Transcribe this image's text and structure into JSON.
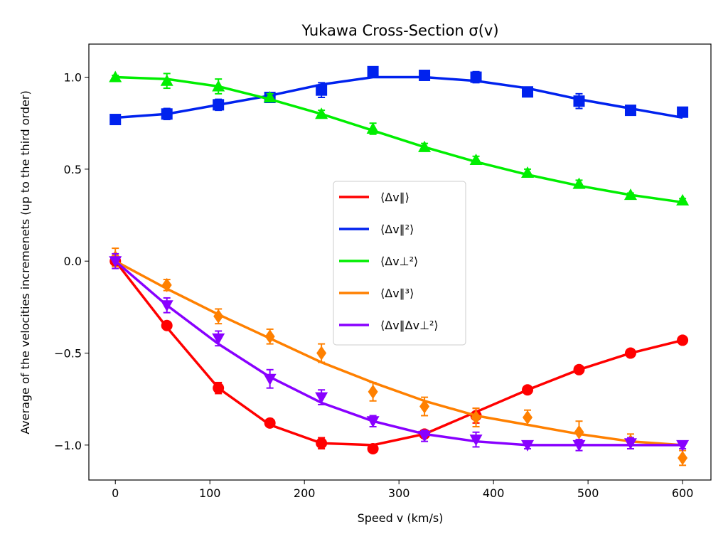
{
  "chart_data": {
    "type": "line",
    "title": "Yukawa Cross-Section σ(v)",
    "xlabel": "Speed v (km/s)",
    "ylabel": "Average of the velocities incremenets (up to the third order)",
    "xlim": [
      -28,
      630
    ],
    "ylim": [
      -1.19,
      1.18
    ],
    "xticks": [
      0,
      100,
      200,
      300,
      400,
      500,
      600
    ],
    "yticks": [
      -1.0,
      -0.5,
      0.0,
      0.5,
      1.0
    ],
    "ytick_labels": [
      "−1.0",
      "−0.5",
      "0.0",
      "0.5",
      "1.0"
    ],
    "grid": false,
    "legend_position": "center-right",
    "x": [
      0,
      54.5,
      109,
      163.5,
      218,
      272.5,
      327,
      381.5,
      436,
      490.5,
      545,
      600
    ],
    "series": [
      {
        "name": "⟨Δv∥⟩",
        "color": "#ff0000",
        "marker": "circle",
        "line": [
          0,
          -0.36,
          -0.69,
          -0.89,
          -0.99,
          -1.0,
          -0.94,
          -0.82,
          -0.7,
          -0.59,
          -0.5,
          -0.43
        ],
        "points": [
          0,
          -0.35,
          -0.69,
          -0.88,
          -0.99,
          -1.02,
          -0.94,
          -0.84,
          -0.7,
          -0.59,
          -0.5,
          -0.43
        ],
        "errors": [
          0.02,
          0.02,
          0.03,
          0.02,
          0.03,
          0.02,
          0.02,
          0.04,
          0.02,
          0.02,
          0.01,
          0.01
        ]
      },
      {
        "name": "⟨Δv∥²⟩",
        "color": "#0022ee",
        "marker": "square",
        "line": [
          0.78,
          0.8,
          0.85,
          0.9,
          0.96,
          1.0,
          1.0,
          0.98,
          0.94,
          0.88,
          0.83,
          0.78
        ],
        "points": [
          0.77,
          0.8,
          0.85,
          0.89,
          0.93,
          1.03,
          1.01,
          1.0,
          0.92,
          0.87,
          0.82,
          0.81
        ],
        "errors": [
          0.02,
          0.03,
          0.03,
          0.02,
          0.04,
          0.02,
          0.01,
          0.03,
          0.02,
          0.04,
          0.01,
          0.02
        ]
      },
      {
        "name": "⟨Δv⊥²⟩",
        "color": "#00ee00",
        "marker": "triangle-up",
        "line": [
          1.0,
          0.99,
          0.95,
          0.88,
          0.8,
          0.71,
          0.62,
          0.54,
          0.47,
          0.41,
          0.36,
          0.32
        ],
        "points": [
          1.0,
          0.98,
          0.95,
          0.89,
          0.8,
          0.72,
          0.62,
          0.55,
          0.48,
          0.42,
          0.36,
          0.33
        ],
        "errors": [
          0.01,
          0.04,
          0.04,
          0.02,
          0.02,
          0.03,
          0.02,
          0.02,
          0.02,
          0.02,
          0.01,
          0.01
        ]
      },
      {
        "name": "⟨Δv∥³⟩",
        "color": "#ff8000",
        "marker": "diamond",
        "line": [
          0,
          -0.15,
          -0.29,
          -0.42,
          -0.55,
          -0.66,
          -0.76,
          -0.84,
          -0.89,
          -0.94,
          -0.98,
          -1.0
        ],
        "points": [
          0.02,
          -0.13,
          -0.3,
          -0.41,
          -0.5,
          -0.71,
          -0.79,
          -0.85,
          -0.85,
          -0.93,
          -0.98,
          -1.07
        ],
        "errors": [
          0.05,
          0.03,
          0.04,
          0.04,
          0.05,
          0.05,
          0.05,
          0.05,
          0.04,
          0.06,
          0.04,
          0.04
        ]
      },
      {
        "name": "⟨Δv∥Δv⊥²⟩",
        "color": "#8800ff",
        "marker": "triangle-down",
        "line": [
          0,
          -0.24,
          -0.45,
          -0.63,
          -0.77,
          -0.87,
          -0.94,
          -0.98,
          -1.0,
          -1.0,
          -1.0,
          -1.0
        ],
        "points": [
          0,
          -0.24,
          -0.42,
          -0.64,
          -0.74,
          -0.87,
          -0.95,
          -0.97,
          -1.0,
          -1.0,
          -0.99,
          -1.0
        ],
        "errors": [
          0.04,
          0.04,
          0.04,
          0.05,
          0.04,
          0.03,
          0.03,
          0.04,
          0.02,
          0.03,
          0.03,
          0.02
        ]
      }
    ]
  }
}
